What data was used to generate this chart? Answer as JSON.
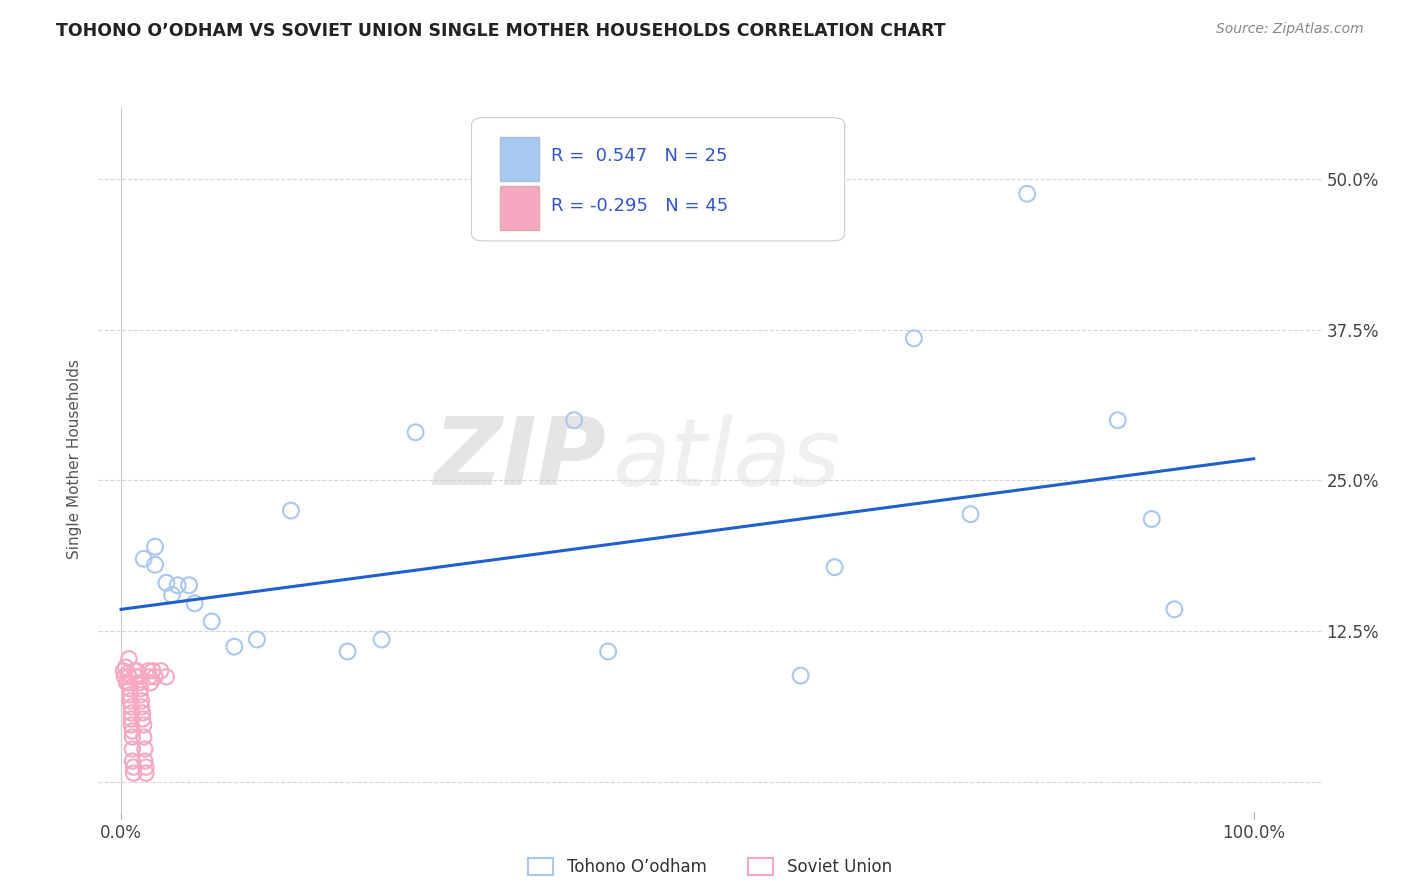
{
  "title": "TOHONO O’ODHAM VS SOVIET UNION SINGLE MOTHER HOUSEHOLDS CORRELATION CHART",
  "source_text": "Source: ZipAtlas.com",
  "ylabel": "Single Mother Households",
  "watermark_zip": "ZIP",
  "watermark_atlas": "atlas",
  "legend_r1": "R =  0.547   N = 25",
  "legend_r2": "R = -0.295   N = 45",
  "legend_color1": "#a8c8f0",
  "legend_color2": "#f5a8c0",
  "legend_text_color": "#3355cc",
  "trendline_color": "#2060cc",
  "trendline_x": [
    0.0,
    1.0
  ],
  "trendline_y": [
    0.143,
    0.268
  ],
  "xlim": [
    -0.02,
    1.06
  ],
  "ylim": [
    -0.025,
    0.56
  ],
  "yticks": [
    0.0,
    0.125,
    0.25,
    0.375,
    0.5
  ],
  "ytick_labels": [
    "",
    "12.5%",
    "25.0%",
    "37.5%",
    "50.0%"
  ],
  "xtick_labels": [
    "0.0%",
    "100.0%"
  ],
  "grid_color": "#cccccc",
  "bg_color": "#ffffff",
  "tohono_color": "#a8c8f0",
  "soviet_color": "#f5a8c0",
  "tohono_label": "Tohono O’odham",
  "soviet_label": "Soviet Union",
  "tohono_points": [
    [
      0.02,
      0.185
    ],
    [
      0.03,
      0.195
    ],
    [
      0.03,
      0.18
    ],
    [
      0.04,
      0.165
    ],
    [
      0.045,
      0.155
    ],
    [
      0.05,
      0.163
    ],
    [
      0.06,
      0.163
    ],
    [
      0.065,
      0.148
    ],
    [
      0.08,
      0.133
    ],
    [
      0.1,
      0.112
    ],
    [
      0.12,
      0.118
    ],
    [
      0.15,
      0.225
    ],
    [
      0.2,
      0.108
    ],
    [
      0.23,
      0.118
    ],
    [
      0.26,
      0.29
    ],
    [
      0.4,
      0.3
    ],
    [
      0.43,
      0.108
    ],
    [
      0.6,
      0.088
    ],
    [
      0.63,
      0.178
    ],
    [
      0.7,
      0.368
    ],
    [
      0.75,
      0.222
    ],
    [
      0.8,
      0.488
    ],
    [
      0.88,
      0.3
    ],
    [
      0.91,
      0.218
    ],
    [
      0.93,
      0.143
    ]
  ],
  "soviet_points": [
    [
      0.002,
      0.092
    ],
    [
      0.003,
      0.087
    ],
    [
      0.004,
      0.095
    ],
    [
      0.005,
      0.082
    ],
    [
      0.006,
      0.09
    ],
    [
      0.007,
      0.087
    ],
    [
      0.007,
      0.102
    ],
    [
      0.007,
      0.082
    ],
    [
      0.008,
      0.077
    ],
    [
      0.008,
      0.072
    ],
    [
      0.008,
      0.067
    ],
    [
      0.009,
      0.062
    ],
    [
      0.009,
      0.057
    ],
    [
      0.009,
      0.052
    ],
    [
      0.009,
      0.047
    ],
    [
      0.01,
      0.042
    ],
    [
      0.01,
      0.037
    ],
    [
      0.01,
      0.027
    ],
    [
      0.01,
      0.017
    ],
    [
      0.011,
      0.012
    ],
    [
      0.011,
      0.007
    ],
    [
      0.012,
      0.092
    ],
    [
      0.013,
      0.087
    ],
    [
      0.014,
      0.092
    ],
    [
      0.015,
      0.087
    ],
    [
      0.016,
      0.082
    ],
    [
      0.017,
      0.077
    ],
    [
      0.017,
      0.072
    ],
    [
      0.018,
      0.067
    ],
    [
      0.018,
      0.062
    ],
    [
      0.019,
      0.057
    ],
    [
      0.019,
      0.052
    ],
    [
      0.02,
      0.047
    ],
    [
      0.02,
      0.037
    ],
    [
      0.021,
      0.027
    ],
    [
      0.021,
      0.017
    ],
    [
      0.022,
      0.012
    ],
    [
      0.022,
      0.007
    ],
    [
      0.024,
      0.092
    ],
    [
      0.025,
      0.087
    ],
    [
      0.026,
      0.082
    ],
    [
      0.028,
      0.092
    ],
    [
      0.03,
      0.087
    ],
    [
      0.035,
      0.092
    ],
    [
      0.04,
      0.087
    ]
  ]
}
